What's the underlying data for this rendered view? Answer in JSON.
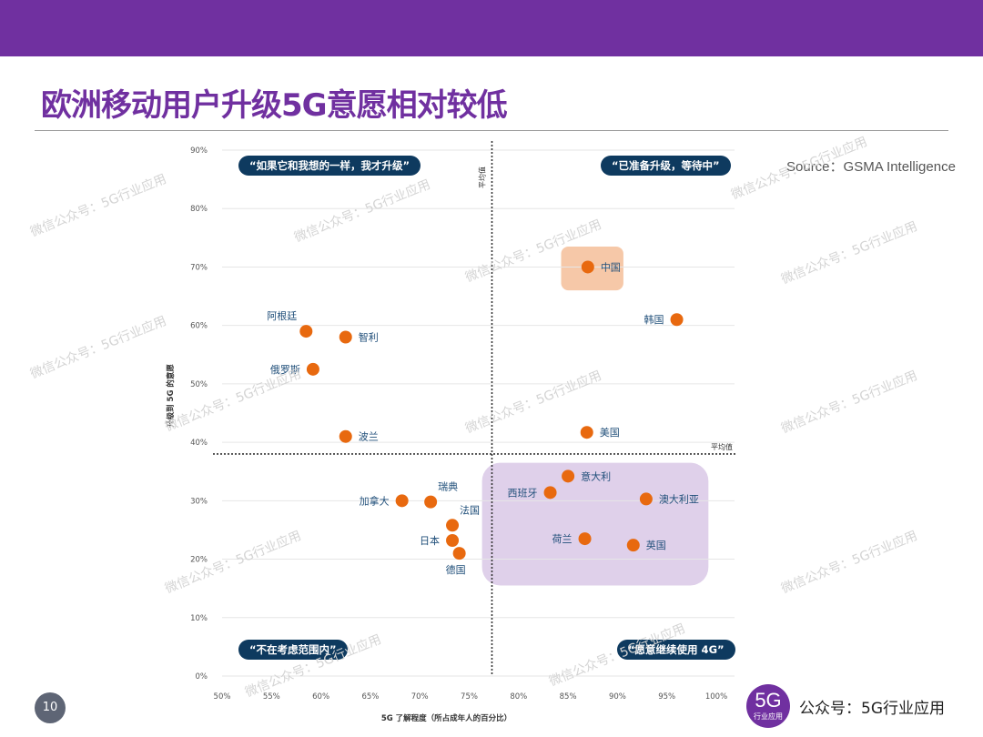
{
  "page": {
    "title": "欧洲移动用户升级5G意愿相对较低",
    "source": "Source：GSMA Intelligence",
    "page_number": "10",
    "logo_text": "5G",
    "logo_subtext": "行业应用",
    "account_label": "公众号：5G行业应用",
    "watermark": "微信公众号：5G行业应用",
    "colors": {
      "brand": "#7030a0",
      "point": "#e8690f",
      "label": "#1f4e79",
      "quad_label_bg": "#0e3a5f",
      "highlight_china": "#f6c8a8",
      "highlight_group": "#d9c8e6"
    }
  },
  "chart_data": {
    "type": "scatter",
    "xlabel": "5G 了解程度（所占成年人的百分比）",
    "ylabel": "升级到 5G 的意愿",
    "xlim": [
      50,
      100
    ],
    "ylim": [
      0,
      90
    ],
    "x_ticks": [
      "50%",
      "55%",
      "60%",
      "65%",
      "70%",
      "75%",
      "80%",
      "85%",
      "90%",
      "95%",
      "100%"
    ],
    "y_ticks": [
      "0%",
      "10%",
      "20%",
      "30%",
      "40%",
      "50%",
      "60%",
      "70%",
      "80%",
      "90%"
    ],
    "grid": "horizontal",
    "avg_x": 77.3,
    "avg_y": 38,
    "avg_label": "平均值",
    "quadrant_labels": {
      "top_left": "“如果它和我想的一样，我才升级”",
      "top_right": "“已准备升级，等待中”",
      "bottom_left": "“不在考虑范围内”",
      "bottom_right": "“愿意继续使用 4G”"
    },
    "points": [
      {
        "name": "阿根廷",
        "x": 58.5,
        "y": 59,
        "label_pos": "above-left"
      },
      {
        "name": "智利",
        "x": 62.5,
        "y": 58,
        "label_pos": "right"
      },
      {
        "name": "俄罗斯",
        "x": 59.2,
        "y": 52.5,
        "label_pos": "left"
      },
      {
        "name": "波兰",
        "x": 62.5,
        "y": 41,
        "label_pos": "right"
      },
      {
        "name": "中国",
        "x": 87,
        "y": 70,
        "label_pos": "right"
      },
      {
        "name": "韩国",
        "x": 96,
        "y": 61,
        "label_pos": "left"
      },
      {
        "name": "美国",
        "x": 86.9,
        "y": 41.7,
        "label_pos": "right"
      },
      {
        "name": "加拿大",
        "x": 68.2,
        "y": 30,
        "label_pos": "left"
      },
      {
        "name": "瑞典",
        "x": 71.1,
        "y": 29.8,
        "label_pos": "above-right"
      },
      {
        "name": "法国",
        "x": 73.3,
        "y": 25.8,
        "label_pos": "above-right"
      },
      {
        "name": "日本",
        "x": 73.3,
        "y": 23.2,
        "label_pos": "left"
      },
      {
        "name": "德国",
        "x": 74,
        "y": 21,
        "label_pos": "below"
      },
      {
        "name": "意大利",
        "x": 85,
        "y": 34.2,
        "label_pos": "right"
      },
      {
        "name": "西班牙",
        "x": 83.2,
        "y": 31.4,
        "label_pos": "left"
      },
      {
        "name": "澳大利亚",
        "x": 92.9,
        "y": 30.3,
        "label_pos": "right"
      },
      {
        "name": "荷兰",
        "x": 86.7,
        "y": 23.5,
        "label_pos": "left"
      },
      {
        "name": "英国",
        "x": 91.6,
        "y": 22.4,
        "label_pos": "right"
      }
    ]
  }
}
